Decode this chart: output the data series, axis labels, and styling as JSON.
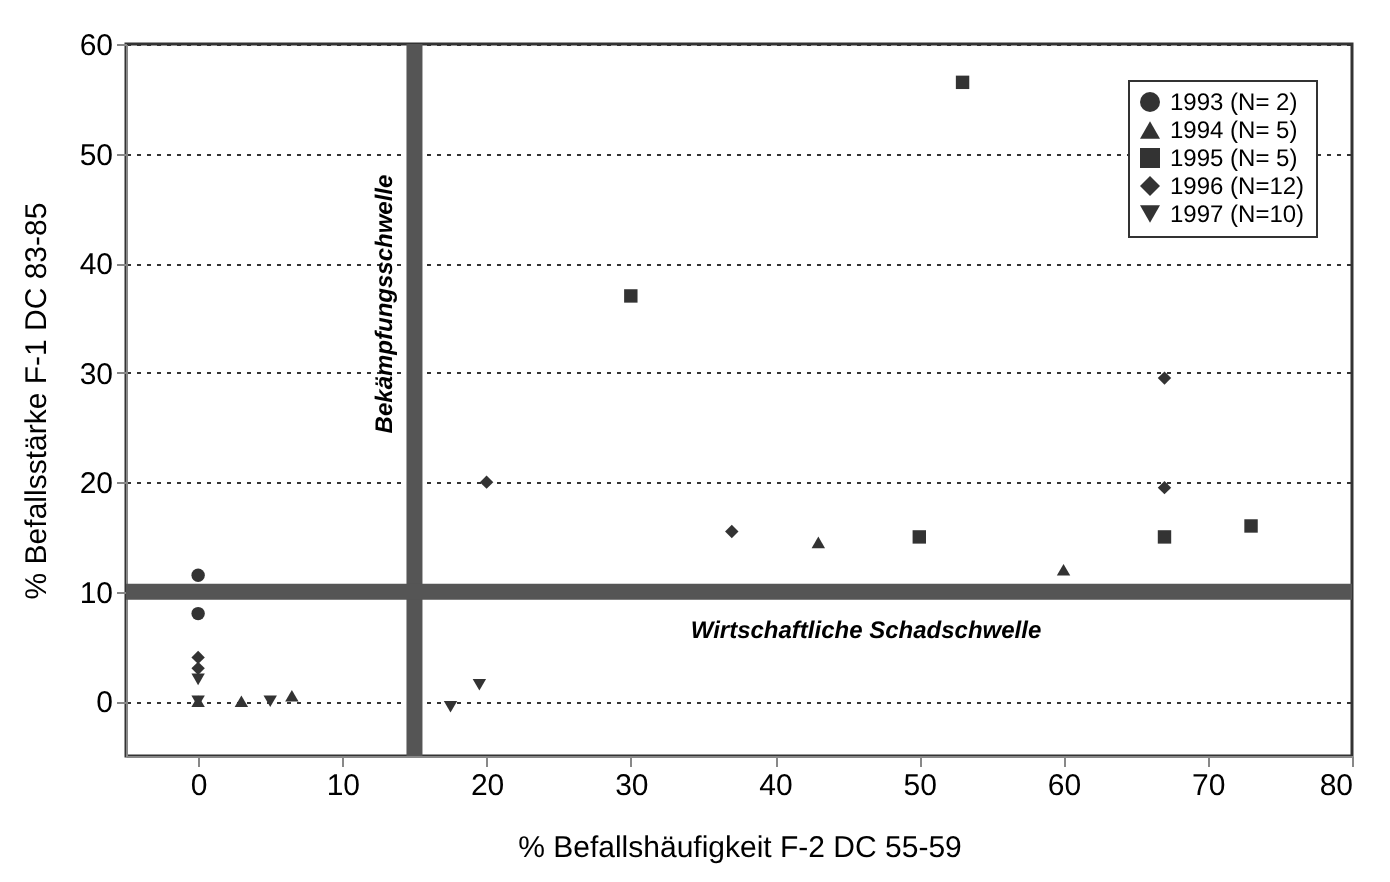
{
  "chart_data": {
    "type": "scatter",
    "xlabel": "% Befallshäufigkeit  F-2 DC 55-59",
    "ylabel": "% Befallsstärke  F-1 DC 83-85",
    "xlim": [
      -5,
      80
    ],
    "ylim": [
      -5,
      60
    ],
    "xticks": [
      0,
      10,
      20,
      30,
      40,
      50,
      60,
      70,
      80
    ],
    "yticks": [
      0,
      10,
      20,
      30,
      40,
      50,
      60
    ],
    "grid": "y",
    "legend": "top right",
    "series": [
      {
        "name": "1993 (N= 2)",
        "color": "#333333",
        "marker": "circle",
        "x": [
          0,
          0
        ],
        "values": [
          11.5,
          8
        ]
      },
      {
        "name": "1994 (N= 5)",
        "color": "#333333",
        "marker": "triangle",
        "x": [
          0,
          3,
          6.5,
          43,
          60
        ],
        "values": [
          0,
          0,
          0.5,
          14.5,
          12
        ]
      },
      {
        "name": "1995 (N= 5)",
        "color": "#333333",
        "marker": "square",
        "x": [
          30,
          53,
          50,
          67,
          73
        ],
        "values": [
          37,
          56.5,
          15,
          15,
          16
        ]
      },
      {
        "name": "1996 (N=12)",
        "color": "#333333",
        "marker": "diamond",
        "x": [
          20,
          37,
          67,
          67,
          0,
          0
        ],
        "values": [
          20,
          15.5,
          29.5,
          19.5,
          4,
          3
        ]
      },
      {
        "name": "1997 (N=10)",
        "color": "#333333",
        "marker": "triangle-down",
        "x": [
          5,
          17.5,
          19.5,
          0,
          0
        ],
        "values": [
          0,
          -0.5,
          1.5,
          2,
          0
        ]
      }
    ],
    "ref_lines": [
      {
        "axis": "x",
        "value": 15,
        "label": "Bekämpfungsschwelle",
        "color": "#555555"
      },
      {
        "axis": "y",
        "value": 10,
        "label": "Wirtschaftliche Schadschwelle",
        "color": "#555555"
      }
    ]
  }
}
